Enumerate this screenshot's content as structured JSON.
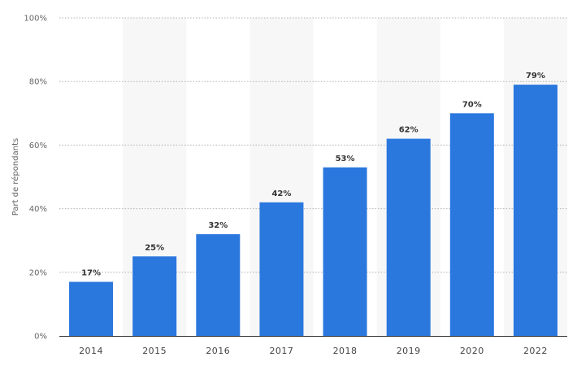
{
  "chart_data": {
    "type": "bar",
    "title": "",
    "xlabel": "",
    "ylabel": "Part de répondants",
    "categories": [
      "2014",
      "2015",
      "2016",
      "2017",
      "2018",
      "2019",
      "2020",
      "2022"
    ],
    "values": [
      17,
      25,
      32,
      42,
      53,
      62,
      70,
      79
    ],
    "data_labels": [
      "17%",
      "25%",
      "32%",
      "42%",
      "53%",
      "62%",
      "70%",
      "79%"
    ],
    "ylim": [
      0,
      100
    ],
    "yticks": [
      0,
      20,
      40,
      60,
      80,
      100
    ],
    "ytick_labels": [
      "0%",
      "20%",
      "40%",
      "60%",
      "80%",
      "100%"
    ],
    "grid": "horizontal dotted",
    "alternating_column_bands": true,
    "legend": "none",
    "bar_color": "#2a77de",
    "band_color": "#f7f7f7",
    "grid_color": "#b0b0b0",
    "axis_color": "#333333"
  }
}
